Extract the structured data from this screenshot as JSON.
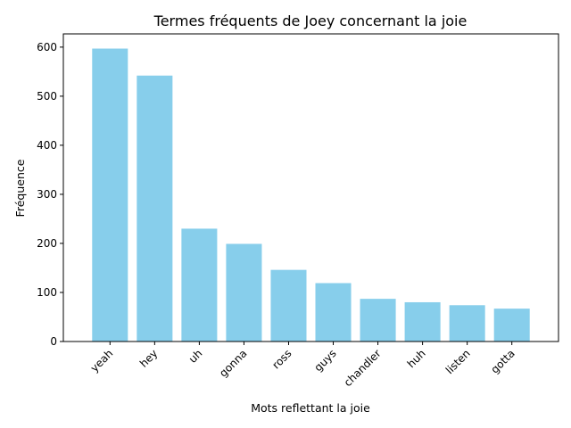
{
  "chart_data": {
    "type": "bar",
    "title": "Termes fréquents de Joey concernant la joie",
    "xlabel": "Mots reflettant la joie",
    "ylabel": "Fréquence",
    "categories": [
      "yeah",
      "hey",
      "uh",
      "gonna",
      "ross",
      "guys",
      "chandler",
      "huh",
      "listen",
      "gotta"
    ],
    "values": [
      597,
      542,
      230,
      199,
      146,
      119,
      87,
      80,
      74,
      67
    ],
    "ylim": [
      0,
      627
    ],
    "yticks": [
      0,
      100,
      200,
      300,
      400,
      500,
      600
    ],
    "bar_color": "#87CEEB",
    "grid": false,
    "xtick_rotation": 45
  }
}
